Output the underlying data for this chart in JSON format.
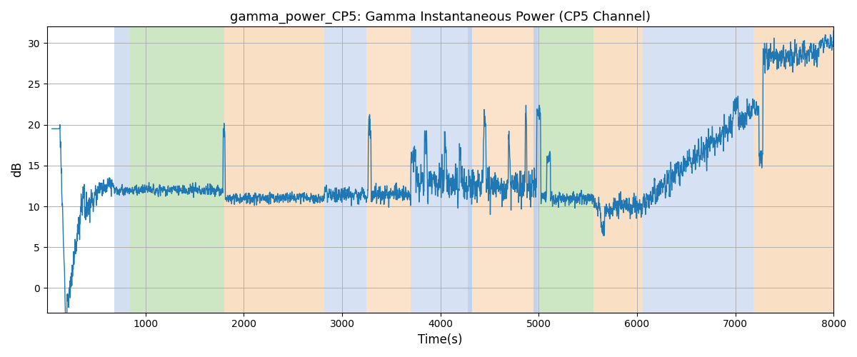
{
  "title": "gamma_power_CP5: Gamma Instantaneous Power (CP5 Channel)",
  "xlabel": "Time(s)",
  "ylabel": "dB",
  "xlim": [
    0,
    8000
  ],
  "ylim": [
    -3,
    32
  ],
  "yticks": [
    0,
    5,
    10,
    15,
    20,
    25,
    30
  ],
  "xticks": [
    1000,
    2000,
    3000,
    4000,
    5000,
    6000,
    7000,
    8000
  ],
  "line_color": "#1f77b4",
  "line_width": 1.0,
  "bg_color": "#ffffff",
  "grid_color": "#b0b0b0",
  "colored_regions": [
    {
      "start": 680,
      "end": 840,
      "color": "#aec6e8",
      "alpha": 0.55
    },
    {
      "start": 840,
      "end": 1800,
      "color": "#90c97a",
      "alpha": 0.45
    },
    {
      "start": 1800,
      "end": 2820,
      "color": "#f5c28a",
      "alpha": 0.5
    },
    {
      "start": 2820,
      "end": 3250,
      "color": "#aec6e8",
      "alpha": 0.5
    },
    {
      "start": 3250,
      "end": 3700,
      "color": "#f5c28a",
      "alpha": 0.45
    },
    {
      "start": 3700,
      "end": 4280,
      "color": "#aec6e8",
      "alpha": 0.5
    },
    {
      "start": 4280,
      "end": 4320,
      "color": "#aec6e8",
      "alpha": 0.75
    },
    {
      "start": 4320,
      "end": 4950,
      "color": "#f5c28a",
      "alpha": 0.45
    },
    {
      "start": 4950,
      "end": 4990,
      "color": "#aec6e8",
      "alpha": 0.75
    },
    {
      "start": 4990,
      "end": 5560,
      "color": "#90c97a",
      "alpha": 0.45
    },
    {
      "start": 5560,
      "end": 6060,
      "color": "#f5c28a",
      "alpha": 0.5
    },
    {
      "start": 6060,
      "end": 7180,
      "color": "#aec6e8",
      "alpha": 0.5
    },
    {
      "start": 7180,
      "end": 8000,
      "color": "#f5c28a",
      "alpha": 0.5
    }
  ],
  "seed": 7,
  "figsize": [
    12,
    5
  ],
  "dpi": 100
}
